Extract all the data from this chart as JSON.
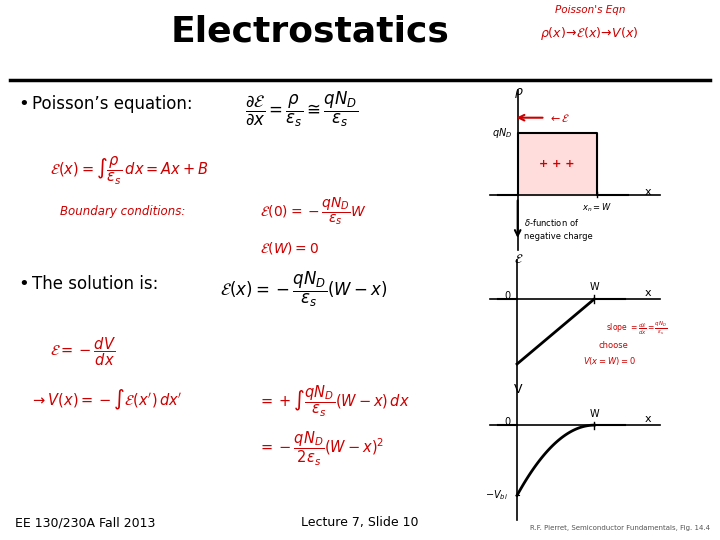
{
  "title": "Electrostatics",
  "title_fontsize": 26,
  "title_fontweight": "bold",
  "bg_color": "#ffffff",
  "text_color": "#000000",
  "red_color": "#cc0000",
  "slide_footer_left": "EE 130/230A Fall 2013",
  "slide_footer_center": "Lecture 7, Slide 10",
  "slide_footer_right": "R.F. Pierret, Semiconductor Fundamentals, Fig. 14.4",
  "bullet1": "Poisson’s equation:",
  "bullet2": "The solution is:"
}
